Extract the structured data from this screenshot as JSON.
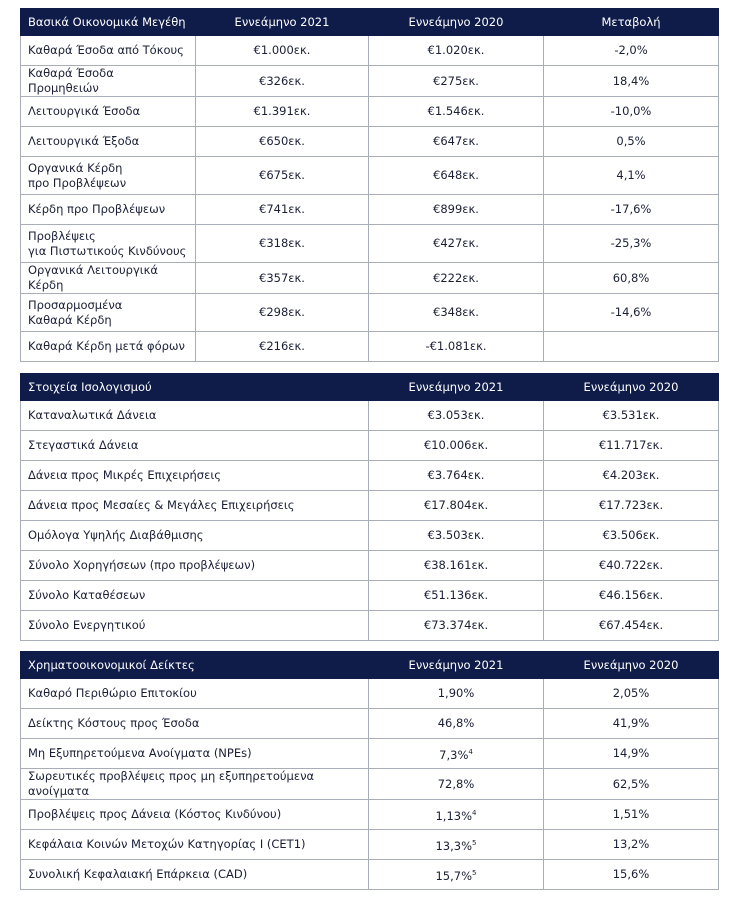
{
  "tables": [
    {
      "header": [
        "Βασικά Οικονομικά Μεγέθη",
        "Εννεάμηνο 2021",
        "Εννεάμηνο 2020",
        "Μεταβολή"
      ],
      "rows": [
        [
          "Καθαρά Έσοδα από Τόκους",
          "€1.000εκ.",
          "€1.020εκ.",
          "-2,0%"
        ],
        [
          "Καθαρά Έσοδα Προμηθειών",
          "€326εκ.",
          "€275εκ.",
          "18,4%"
        ],
        [
          "Λειτουργικά Έσοδα",
          "€1.391εκ.",
          "€1.546εκ.",
          "-10,0%"
        ],
        [
          "Λειτουργικά Έξοδα",
          "€650εκ.",
          "€647εκ.",
          "0,5%"
        ],
        [
          "Οργανικά Κέρδη\nπρο Προβλέψεων",
          "€675εκ.",
          "€648εκ.",
          "4,1%"
        ],
        [
          "Κέρδη προ Προβλέψεων",
          "€741εκ.",
          "€899εκ.",
          "-17,6%"
        ],
        [
          "Προβλέψεις\nγια Πιστωτικούς Κινδύνους",
          "€318εκ.",
          "€427εκ.",
          "-25,3%"
        ],
        [
          "Οργανικά Λειτουργικά Κέρδη",
          "€357εκ.",
          "€222εκ.",
          "60,8%"
        ],
        [
          "Προσαρμοσμένα\nΚαθαρά Κέρδη",
          "€298εκ.",
          "€348εκ.",
          "-14,6%"
        ],
        [
          "Καθαρά Κέρδη μετά φόρων",
          "€216εκ.",
          "-€1.081εκ.",
          null
        ]
      ]
    },
    {
      "header": [
        "Στοιχεία Ισολογισμού",
        "Εννεάμηνο 2021",
        "Εννεάμηνο 2020"
      ],
      "rows": [
        [
          "Καταναλωτικά Δάνεια",
          "€3.053εκ.",
          "€3.531εκ."
        ],
        [
          "Στεγαστικά Δάνεια",
          "€10.006εκ.",
          "€11.717εκ."
        ],
        [
          "Δάνεια προς Μικρές Επιχειρήσεις",
          "€3.764εκ.",
          "€4.203εκ."
        ],
        [
          "Δάνεια προς Μεσαίες & Μεγάλες Επιχειρήσεις",
          "€17.804εκ.",
          "€17.723εκ."
        ],
        [
          "Ομόλογα Υψηλής Διαβάθμισης",
          "€3.503εκ.",
          "€3.506εκ."
        ],
        [
          "Σύνολο Χορηγήσεων (προ προβλέψεων)",
          "€38.161εκ.",
          "€40.722εκ."
        ],
        [
          "Σύνολο Καταθέσεων",
          "€51.136εκ.",
          "€46.156εκ."
        ],
        [
          "Σύνολο Ενεργητικού",
          "€73.374εκ.",
          "€67.454εκ."
        ]
      ]
    },
    {
      "header": [
        "Χρηματοοικονομικοί Δείκτες",
        "Εννεάμηνο 2021",
        "Εννεάμηνο 2020"
      ],
      "rows": [
        [
          "Καθαρό Περιθώριο Επιτοκίου",
          "1,90%",
          "2,05%"
        ],
        [
          "Δείκτης Κόστους προς Έσοδα",
          "46,8%",
          "41,9%"
        ],
        [
          "Μη Εξυπηρετούμενα Ανοίγματα (NPEs)",
          {
            "text": "7,3%",
            "sup": "4"
          },
          "14,9%"
        ],
        [
          "Σωρευτικές προβλέψεις προς μη εξυπηρετούμενα ανοίγματα",
          "72,8%",
          "62,5%"
        ],
        [
          "Προβλέψεις προς Δάνεια (Κόστος Κινδύνου)",
          {
            "text": "1,13%",
            "sup": "4"
          },
          "1,51%"
        ],
        [
          "Κεφάλαια Κοινών Μετοχών Κατηγορίας Ι (CET1)",
          {
            "text": "13,3%",
            "sup": "5"
          },
          "13,2%"
        ],
        [
          "Συνολική Κεφαλαιακή Επάρκεια (CAD)",
          {
            "text": "15,7%",
            "sup": "5"
          },
          "15,6%"
        ]
      ]
    }
  ]
}
